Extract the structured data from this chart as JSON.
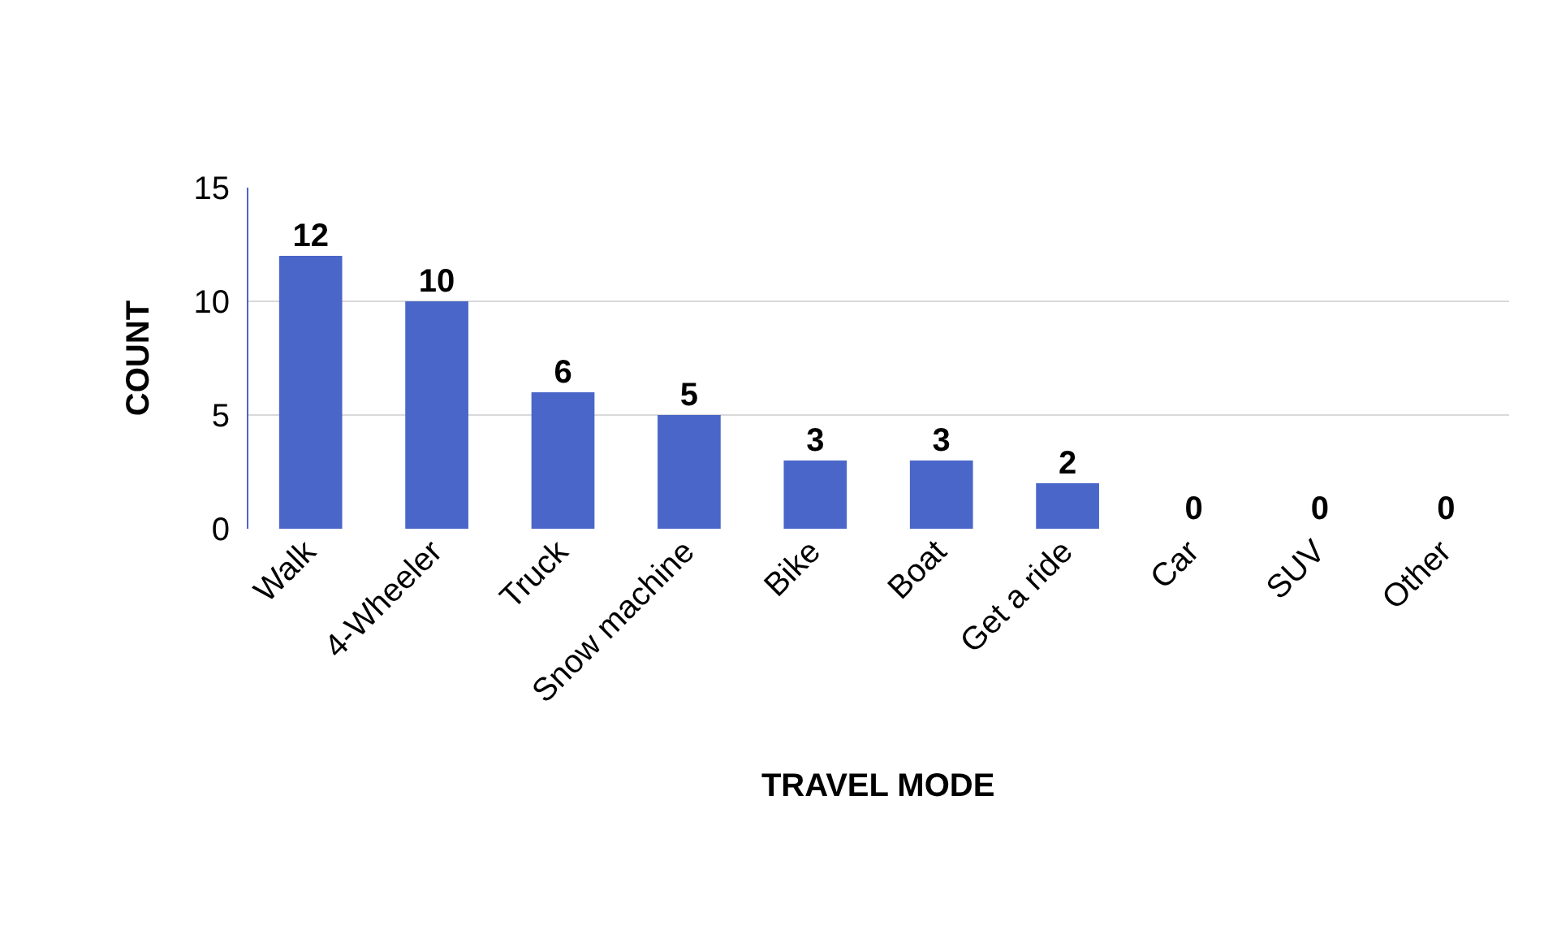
{
  "chart_data": {
    "type": "bar",
    "xlabel": "TRAVEL MODE",
    "ylabel": "COUNT",
    "categories": [
      "Walk",
      "4-Wheeler",
      "Truck",
      "Snow machine",
      "Bike",
      "Boat",
      "Get a ride",
      "Car",
      "SUV",
      "Other"
    ],
    "values": [
      12,
      10,
      6,
      5,
      3,
      3,
      2,
      0,
      0,
      0
    ],
    "color": "#4a66c9",
    "ylim": [
      0,
      15
    ],
    "yticks": [
      0,
      5,
      10,
      15
    ],
    "grid": "y",
    "data_labels": true
  }
}
